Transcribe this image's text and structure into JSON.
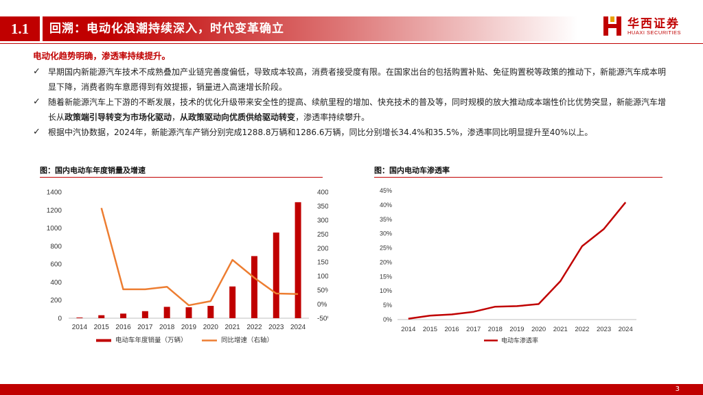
{
  "header": {
    "section_number": "1.1",
    "title": "回溯：电动化浪潮持续深入，时代变革确立"
  },
  "brand": {
    "name_cn": "华西证券",
    "name_en": "HUAXI SECURITIES",
    "color": "#c00000"
  },
  "lead": "电动化趋势明确，渗透率持续提升。",
  "bullets": [
    {
      "icon": "check-icon",
      "text": "早期国内新能源汽车技术不成熟叠加产业链完善度偏低，导致成本较高，消费者接受度有限。在国家出台的包括购置补贴、免征购置税等政策的推动下，新能源汽车成本明显下降，消费者购车意愿得到有效提振，销量进入高速增长阶段。"
    },
    {
      "icon": "check-icon",
      "text_a": "随着新能源汽车上下游的不断发展，技术的优化升级带来安全性的提高、续航里程的增加、快充技术的普及等，同时规模的放大推动成本端性价比优势突显，新能源汽车增长从",
      "bold_a": "政策端引导转变为市场化驱动",
      "text_b": "，",
      "bold_b": "从政策驱动向优质供给驱动转变",
      "text_c": "，渗透率持续攀升。"
    },
    {
      "icon": "check-icon",
      "text": "根据中汽协数据，2024年，新能源汽车产销分别完成1288.8万辆和1286.6万辆，同比分别增长34.4%和35.5%，渗透率同比明显提升至40%以上。"
    }
  ],
  "figures": {
    "left_title": "图：国内电动车年度销量及增速",
    "right_title": "图：国内电动车渗透率"
  },
  "chart_data": [
    {
      "type": "bar",
      "categories": [
        "2014",
        "2015",
        "2016",
        "2017",
        "2018",
        "2019",
        "2020",
        "2021",
        "2022",
        "2023",
        "2024"
      ],
      "series": [
        {
          "name": "电动车年度销量（万辆）",
          "type": "bar",
          "axis": "left",
          "color": "#c00000",
          "values": [
            7.5,
            33,
            51,
            78,
            126,
            121,
            137,
            352,
            689,
            950,
            1287
          ]
        },
        {
          "name": "同比增速（右轴）",
          "type": "line",
          "axis": "right",
          "color": "#ed7d31",
          "values": [
            null,
            343,
            53,
            53,
            62,
            -4,
            11,
            158,
            94,
            38,
            36
          ]
        }
      ],
      "ylim_left": [
        0,
        1400
      ],
      "yticks_left": [
        0,
        200,
        400,
        600,
        800,
        1000,
        1200,
        1400
      ],
      "ylim_right": [
        -50,
        400
      ],
      "yticks_right": [
        "-50%",
        "0%",
        "50%",
        "100%",
        "150%",
        "200%",
        "250%",
        "300%",
        "350%",
        "400%"
      ],
      "legend": "bottom"
    },
    {
      "type": "line",
      "categories": [
        "2014",
        "2015",
        "2016",
        "2017",
        "2018",
        "2019",
        "2020",
        "2021",
        "2022",
        "2023",
        "2024"
      ],
      "series": [
        {
          "name": "电动车渗透率",
          "color": "#c00000",
          "values": [
            0.3,
            1.4,
            1.8,
            2.7,
            4.5,
            4.7,
            5.4,
            13.4,
            25.6,
            31.6,
            40.9
          ]
        }
      ],
      "ylim": [
        0,
        45
      ],
      "yticks": [
        "0%",
        "5%",
        "10%",
        "15%",
        "20%",
        "25%",
        "30%",
        "35%",
        "40%",
        "45%"
      ],
      "legend": "bottom"
    }
  ],
  "page_number": "3"
}
